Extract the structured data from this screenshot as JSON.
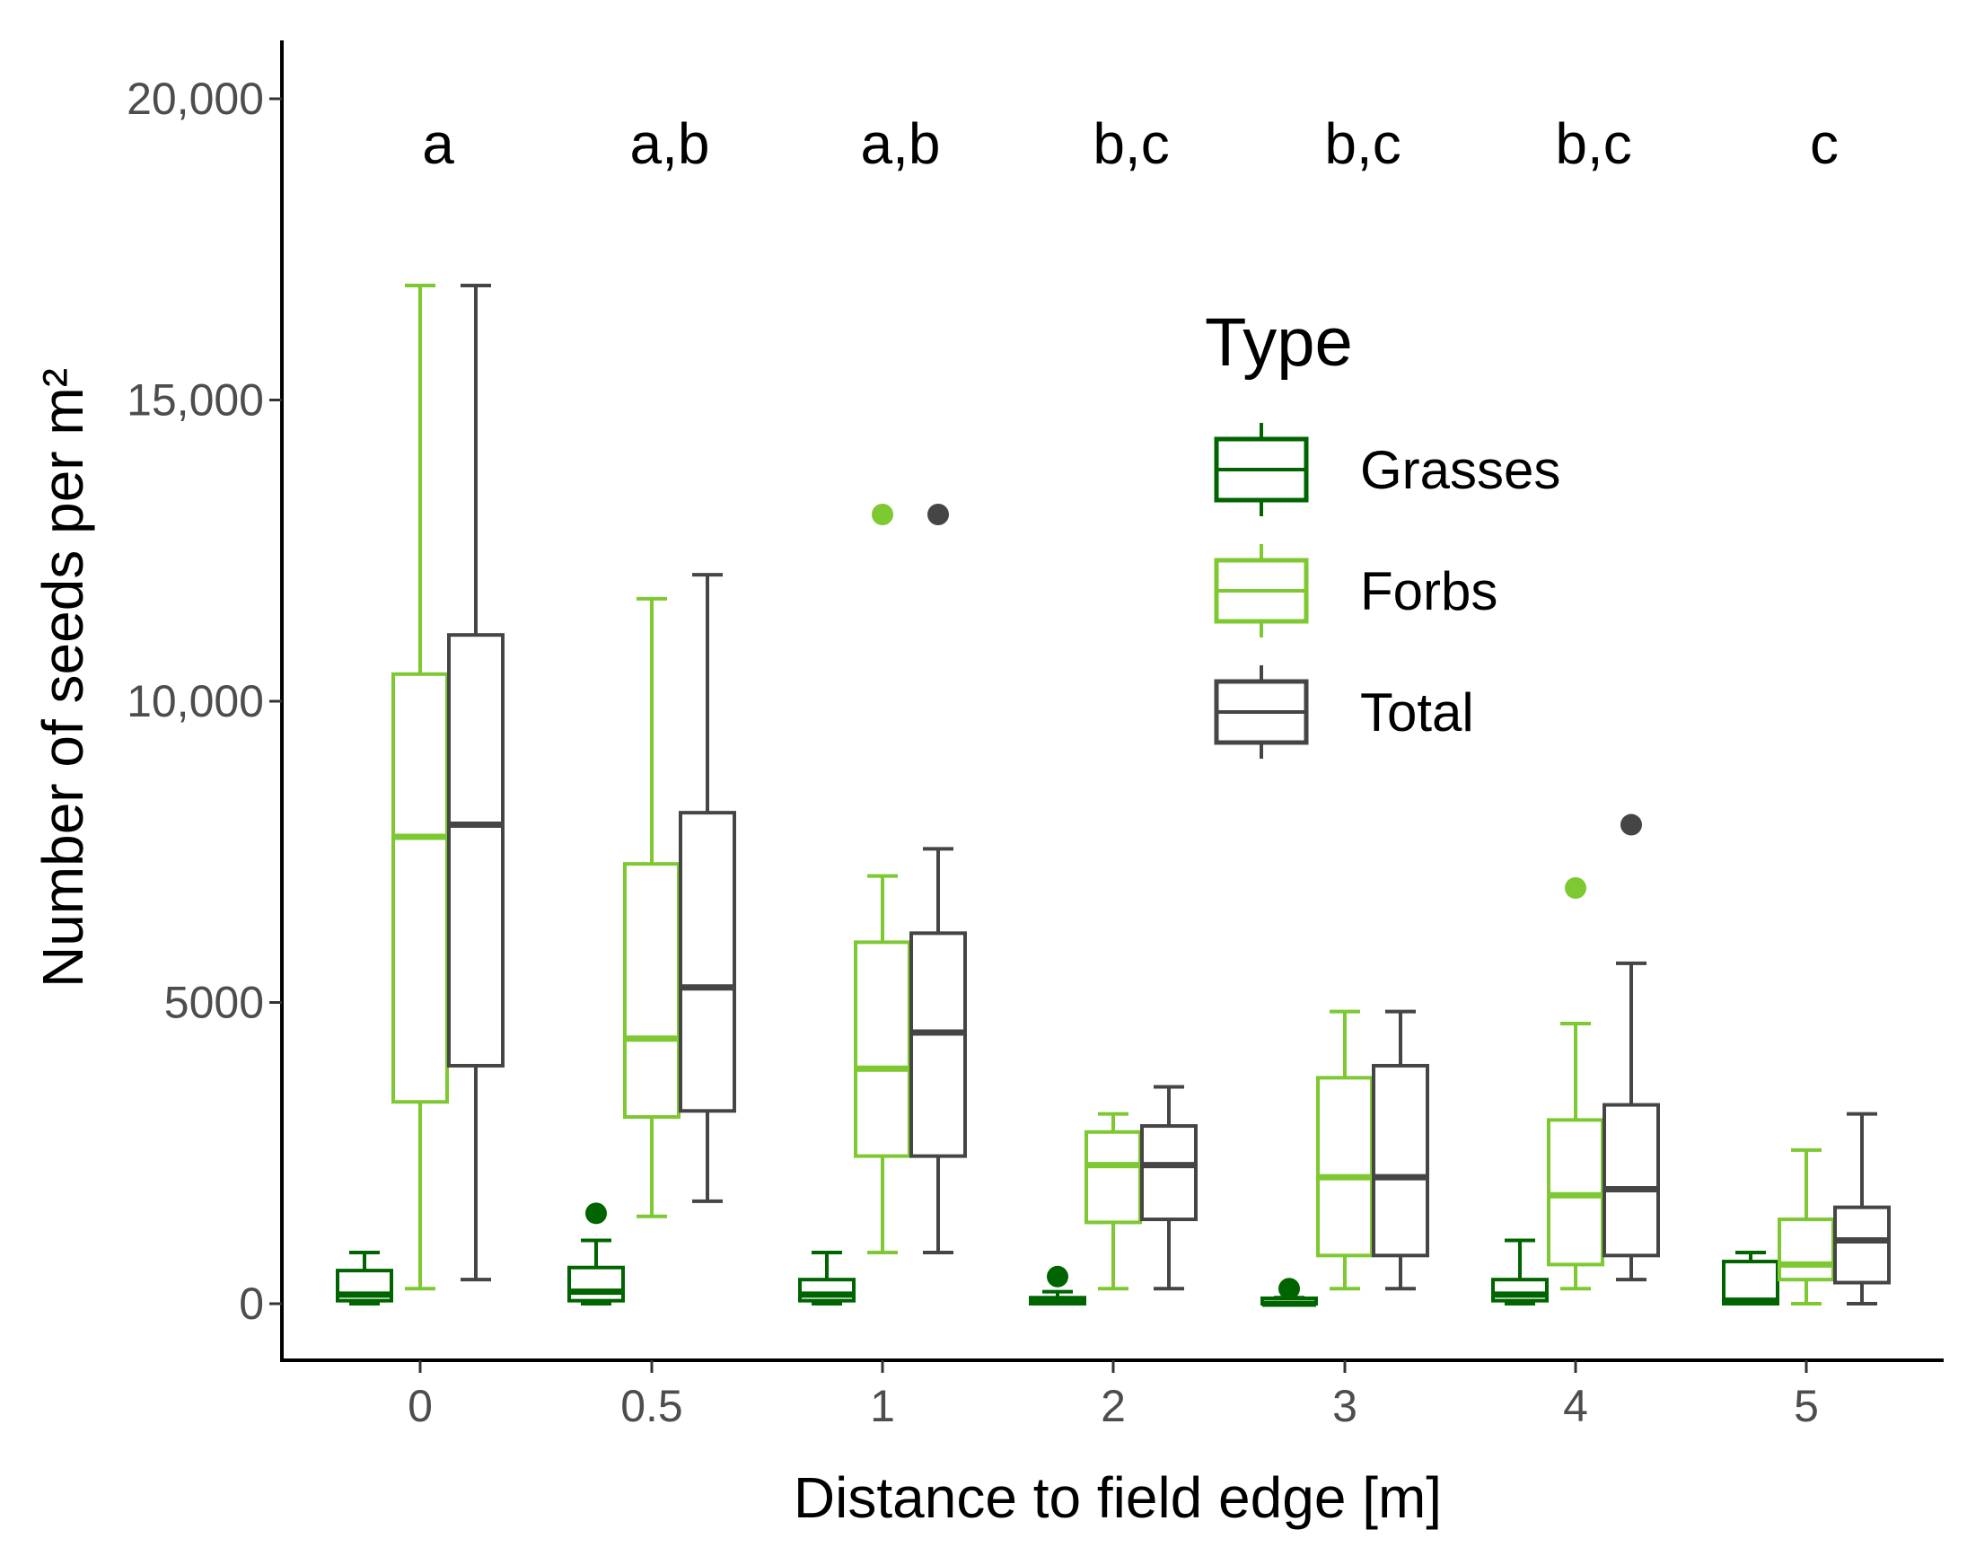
{
  "chart_data": {
    "type": "boxplot",
    "title": "",
    "xlabel": "Distance to field edge [m]",
    "ylabel": "Number of seeds per m²",
    "ylim": [
      -600,
      20800
    ],
    "y_ticks": [
      0,
      5000,
      10000,
      15000,
      20000
    ],
    "y_tick_labels": [
      "0",
      "5000",
      "10,000",
      "15,000",
      "20,000"
    ],
    "categories": [
      "0",
      "0.5",
      "1",
      "2",
      "3",
      "4",
      "5"
    ],
    "significance_letters": [
      "a",
      "a,b",
      "a,b",
      "b,c",
      "b,c",
      "b,c",
      "c"
    ],
    "legend": {
      "title": "Type",
      "position": "top-right"
    },
    "series": [
      {
        "name": "Grasses",
        "color": "#006400",
        "boxes": [
          {
            "q1": 50,
            "median": 150,
            "q3": 550,
            "whisker_low": 0,
            "whisker_high": 850,
            "outliers": []
          },
          {
            "q1": 50,
            "median": 200,
            "q3": 600,
            "whisker_low": 0,
            "whisker_high": 1050,
            "outliers": [
              1500
            ]
          },
          {
            "q1": 50,
            "median": 150,
            "q3": 400,
            "whisker_low": 0,
            "whisker_high": 850,
            "outliers": []
          },
          {
            "q1": 0,
            "median": 50,
            "q3": 100,
            "whisker_low": 0,
            "whisker_high": 200,
            "outliers": [
              450
            ]
          },
          {
            "q1": 0,
            "median": 0,
            "q3": 50,
            "whisker_low": 0,
            "whisker_high": 100,
            "outliers": [
              250
            ]
          },
          {
            "q1": 50,
            "median": 150,
            "q3": 400,
            "whisker_low": 0,
            "whisker_high": 1050,
            "outliers": []
          },
          {
            "q1": 0,
            "median": 50,
            "q3": 700,
            "whisker_low": 0,
            "whisker_high": 850,
            "outliers": []
          }
        ]
      },
      {
        "name": "Forbs",
        "color": "#7ec832",
        "boxes": [
          {
            "q1": 3350,
            "median": 7750,
            "q3": 10450,
            "whisker_low": 250,
            "whisker_high": 16900,
            "outliers": []
          },
          {
            "q1": 3100,
            "median": 4400,
            "q3": 7300,
            "whisker_low": 1450,
            "whisker_high": 11700,
            "outliers": []
          },
          {
            "q1": 2450,
            "median": 3900,
            "q3": 6000,
            "whisker_low": 850,
            "whisker_high": 7100,
            "outliers": [
              13100
            ]
          },
          {
            "q1": 1350,
            "median": 2300,
            "q3": 2850,
            "whisker_low": 250,
            "whisker_high": 3150,
            "outliers": []
          },
          {
            "q1": 800,
            "median": 2100,
            "q3": 3750,
            "whisker_low": 250,
            "whisker_high": 4850,
            "outliers": []
          },
          {
            "q1": 650,
            "median": 1800,
            "q3": 3050,
            "whisker_low": 250,
            "whisker_high": 4650,
            "outliers": [
              6900
            ]
          },
          {
            "q1": 400,
            "median": 650,
            "q3": 1400,
            "whisker_low": 0,
            "whisker_high": 2550,
            "outliers": []
          }
        ]
      },
      {
        "name": "Total",
        "color": "#454545",
        "boxes": [
          {
            "q1": 3950,
            "median": 7950,
            "q3": 11100,
            "whisker_low": 400,
            "whisker_high": 16900,
            "outliers": []
          },
          {
            "q1": 3200,
            "median": 5250,
            "q3": 8150,
            "whisker_low": 1700,
            "whisker_high": 12100,
            "outliers": []
          },
          {
            "q1": 2450,
            "median": 4500,
            "q3": 6150,
            "whisker_low": 850,
            "whisker_high": 7550,
            "outliers": [
              13100
            ]
          },
          {
            "q1": 1400,
            "median": 2300,
            "q3": 2950,
            "whisker_low": 250,
            "whisker_high": 3600,
            "outliers": []
          },
          {
            "q1": 800,
            "median": 2100,
            "q3": 3950,
            "whisker_low": 250,
            "whisker_high": 4850,
            "outliers": []
          },
          {
            "q1": 800,
            "median": 1900,
            "q3": 3300,
            "whisker_low": 400,
            "whisker_high": 5650,
            "outliers": [
              7950
            ]
          },
          {
            "q1": 350,
            "median": 1050,
            "q3": 1600,
            "whisker_low": 0,
            "whisker_high": 3150,
            "outliers": []
          }
        ]
      }
    ]
  }
}
